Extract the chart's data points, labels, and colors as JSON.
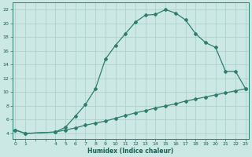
{
  "xlabel": "Humidex (Indice chaleur)",
  "background_color": "#cce8e5",
  "line_color": "#2e7d6e",
  "grid_color": "#aaccca",
  "x_upper_line": [
    0,
    1,
    4,
    5,
    6,
    7,
    8,
    9,
    10,
    11,
    12,
    13,
    14,
    15,
    16,
    17,
    18,
    19,
    20,
    21,
    22,
    23
  ],
  "y_upper_line": [
    4.5,
    4.0,
    4.2,
    4.9,
    6.5,
    8.2,
    10.5,
    14.8,
    16.8,
    18.5,
    20.2,
    21.2,
    21.3,
    22.0,
    21.5,
    20.5,
    18.5,
    17.2,
    16.5,
    13.0,
    13.0,
    10.5
  ],
  "x_lower_line": [
    0,
    1,
    4,
    5,
    6,
    7,
    8,
    9,
    10,
    11,
    12,
    13,
    14,
    15,
    16,
    17,
    18,
    19,
    20,
    21,
    22,
    23
  ],
  "y_lower_line": [
    4.5,
    4.0,
    4.2,
    4.5,
    4.8,
    5.2,
    5.5,
    5.8,
    6.2,
    6.6,
    7.0,
    7.3,
    7.7,
    8.0,
    8.3,
    8.7,
    9.0,
    9.3,
    9.6,
    9.9,
    10.2,
    10.5
  ],
  "yticks": [
    4,
    6,
    8,
    10,
    12,
    14,
    16,
    18,
    20,
    22
  ],
  "xticks": [
    0,
    1,
    2,
    3,
    4,
    5,
    6,
    7,
    8,
    9,
    10,
    11,
    12,
    13,
    14,
    15,
    16,
    17,
    18,
    19,
    20,
    21,
    22,
    23
  ],
  "xticklabels": [
    "0",
    "1",
    "",
    "",
    "4",
    "5",
    "6",
    "7",
    "8",
    "9",
    "10",
    "11",
    "12",
    "13",
    "14",
    "15",
    "16",
    "17",
    "18",
    "19",
    "20",
    "21",
    "22",
    "23"
  ],
  "xlim": [
    -0.3,
    23.3
  ],
  "ylim": [
    3.2,
    23.0
  ]
}
